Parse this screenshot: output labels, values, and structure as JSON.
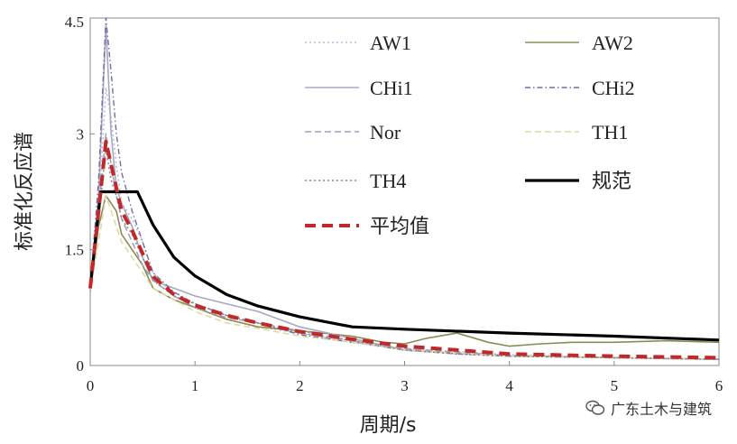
{
  "chart_data": {
    "type": "line",
    "xlabel": "周期/s",
    "ylabel": "标准化反应谱",
    "xlim": [
      0,
      6
    ],
    "ylim": [
      0,
      4.5
    ],
    "x_ticks": [
      "0",
      "1",
      "2",
      "3",
      "4",
      "5",
      "6"
    ],
    "y_ticks": [
      "0",
      "1.5",
      "3",
      "4.5"
    ],
    "legend_position": "top-right (two columns)",
    "series": [
      {
        "name": "AW1",
        "color": "#b9b9d6",
        "style": "dotted",
        "x": [
          0,
          0.08,
          0.15,
          0.2,
          0.25,
          0.3,
          0.4,
          0.5,
          0.6,
          0.8,
          1.0,
          1.3,
          1.6,
          2.0,
          2.5,
          3.0,
          3.5,
          4.0,
          5.0,
          6.0
        ],
        "y": [
          0.95,
          2.0,
          3.6,
          3.2,
          2.6,
          2.1,
          1.9,
          1.6,
          1.2,
          0.9,
          0.75,
          0.6,
          0.5,
          0.42,
          0.3,
          0.22,
          0.18,
          0.14,
          0.1,
          0.08
        ]
      },
      {
        "name": "AW2",
        "color": "#8c8a55",
        "style": "solid",
        "x": [
          0,
          0.08,
          0.15,
          0.2,
          0.25,
          0.3,
          0.4,
          0.5,
          0.6,
          0.8,
          1.0,
          1.3,
          1.6,
          2.0,
          2.5,
          2.8,
          3.0,
          3.2,
          3.5,
          3.8,
          4.0,
          4.3,
          4.6,
          5.0,
          5.5,
          6.0
        ],
        "y": [
          1.0,
          1.8,
          2.2,
          2.1,
          2.0,
          1.7,
          1.5,
          1.3,
          1.0,
          0.85,
          0.75,
          0.6,
          0.5,
          0.45,
          0.38,
          0.3,
          0.28,
          0.35,
          0.42,
          0.3,
          0.25,
          0.28,
          0.3,
          0.3,
          0.32,
          0.3
        ]
      },
      {
        "name": "CHi1",
        "color": "#a8a8c0",
        "style": "solid",
        "x": [
          0,
          0.08,
          0.15,
          0.2,
          0.25,
          0.3,
          0.4,
          0.5,
          0.6,
          0.8,
          1.0,
          1.3,
          1.6,
          2.0,
          2.5,
          3.0,
          3.5,
          4.0,
          5.0,
          6.0
        ],
        "y": [
          0.95,
          2.2,
          4.4,
          3.0,
          2.3,
          2.1,
          1.8,
          1.4,
          1.1,
          1.0,
          0.9,
          0.8,
          0.7,
          0.5,
          0.35,
          0.2,
          0.16,
          0.12,
          0.1,
          0.08
        ]
      },
      {
        "name": "CHi2",
        "color": "#6f6fa5",
        "style": "dashdot",
        "x": [
          0,
          0.08,
          0.15,
          0.2,
          0.25,
          0.3,
          0.4,
          0.5,
          0.6,
          0.8,
          1.0,
          1.3,
          1.6,
          2.0,
          2.5,
          3.0,
          3.5,
          4.0,
          5.0,
          6.0
        ],
        "y": [
          1.0,
          2.4,
          4.5,
          3.8,
          3.0,
          2.5,
          2.0,
          1.6,
          1.2,
          0.95,
          0.8,
          0.65,
          0.55,
          0.4,
          0.3,
          0.2,
          0.15,
          0.12,
          0.1,
          0.08
        ]
      },
      {
        "name": "Nor",
        "color": "#a09fb8",
        "style": "dashed",
        "x": [
          0,
          0.08,
          0.15,
          0.2,
          0.25,
          0.3,
          0.4,
          0.5,
          0.6,
          0.8,
          1.0,
          1.3,
          1.6,
          2.0,
          2.5,
          3.0,
          3.5,
          4.0,
          5.0,
          6.0
        ],
        "y": [
          1.0,
          2.0,
          3.0,
          2.6,
          2.2,
          1.9,
          1.6,
          1.3,
          1.1,
          0.9,
          0.75,
          0.62,
          0.55,
          0.45,
          0.32,
          0.22,
          0.17,
          0.13,
          0.1,
          0.08
        ]
      },
      {
        "name": "TH1",
        "color": "#e0d9a0",
        "style": "dashed",
        "x": [
          0,
          0.08,
          0.15,
          0.2,
          0.25,
          0.3,
          0.4,
          0.5,
          0.6,
          0.8,
          1.0,
          1.3,
          1.6,
          2.0,
          2.5,
          3.0,
          3.5,
          4.0,
          5.0,
          6.0
        ],
        "y": [
          1.0,
          1.6,
          2.2,
          2.0,
          1.8,
          1.6,
          1.4,
          1.2,
          1.0,
          0.85,
          0.7,
          0.55,
          0.48,
          0.38,
          0.3,
          0.2,
          0.16,
          0.12,
          0.1,
          0.08
        ]
      },
      {
        "name": "TH4",
        "color": "#8a8a8a",
        "style": "dotted",
        "x": [
          0,
          0.08,
          0.15,
          0.2,
          0.25,
          0.3,
          0.4,
          0.5,
          0.6,
          0.8,
          1.0,
          1.3,
          1.6,
          2.0,
          2.5,
          3.0,
          3.5,
          4.0,
          5.0,
          6.0
        ],
        "y": [
          1.0,
          1.9,
          2.8,
          2.4,
          2.2,
          1.9,
          1.7,
          1.4,
          1.1,
          0.9,
          0.8,
          0.65,
          0.55,
          0.42,
          0.32,
          0.2,
          0.15,
          0.12,
          0.1,
          0.08
        ]
      },
      {
        "name": "规范",
        "color": "#000000",
        "style": "solid-bold",
        "x": [
          0,
          0.1,
          0.45,
          0.6,
          0.8,
          1.0,
          1.3,
          1.6,
          2.0,
          2.5,
          3.0,
          4.0,
          5.0,
          6.0
        ],
        "y": [
          1.0,
          2.25,
          2.25,
          1.82,
          1.4,
          1.16,
          0.92,
          0.77,
          0.63,
          0.5,
          0.47,
          0.42,
          0.38,
          0.33
        ]
      },
      {
        "name": "平均值",
        "color": "#c0282a",
        "style": "dashed-bold",
        "x": [
          0,
          0.08,
          0.15,
          0.2,
          0.25,
          0.3,
          0.4,
          0.5,
          0.6,
          0.8,
          1.0,
          1.3,
          1.6,
          2.0,
          2.5,
          3.0,
          3.5,
          4.0,
          5.0,
          6.0
        ],
        "y": [
          1.0,
          2.0,
          2.9,
          2.6,
          2.3,
          2.0,
          1.75,
          1.45,
          1.15,
          0.92,
          0.78,
          0.65,
          0.55,
          0.44,
          0.34,
          0.25,
          0.2,
          0.15,
          0.12,
          0.1
        ]
      }
    ]
  },
  "watermark": {
    "text": "广东土木与建筑",
    "icon": "wechat-icon"
  }
}
